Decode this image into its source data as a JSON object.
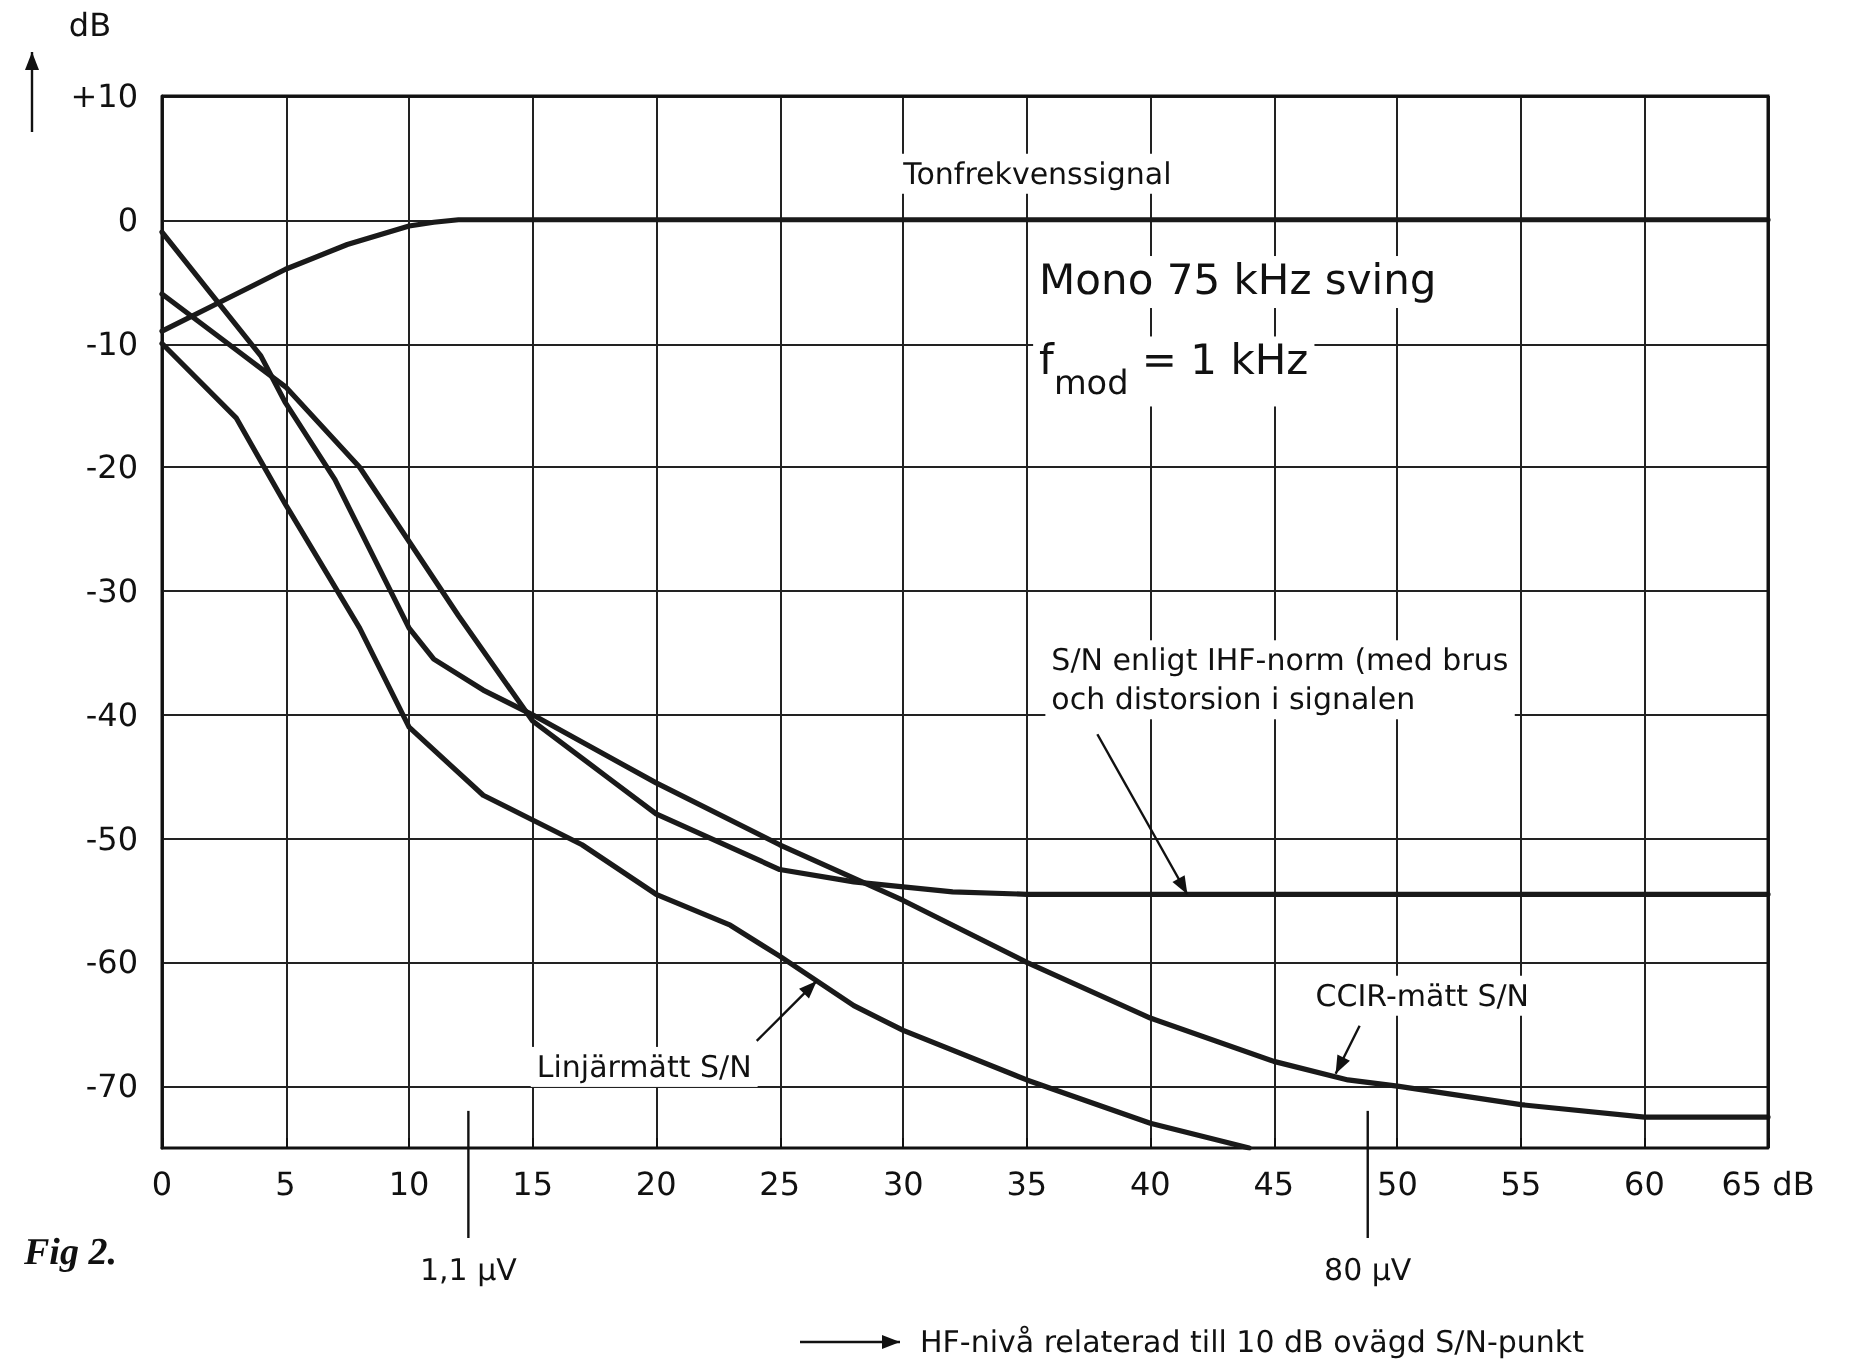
{
  "chart_data": {
    "type": "line",
    "xlabel": "HF-nivå relaterad till 10 dB ovägd S/N-punkt",
    "ylabel": "dB",
    "xlim": [
      0,
      65
    ],
    "xticks": [
      0,
      5,
      10,
      15,
      20,
      25,
      30,
      35,
      40,
      45,
      50,
      55,
      60,
      {
        "value": 65,
        "label": "65 dB"
      }
    ],
    "ylim": [
      -75,
      10
    ],
    "yticks": [
      -70,
      -60,
      -50,
      -40,
      -30,
      -20,
      -10,
      0,
      {
        "value": 10,
        "label": "+10"
      }
    ],
    "grid": true,
    "marker": "none",
    "line_style": "solid",
    "series": [
      {
        "color": "#1a1a1a",
        "x": [
          0,
          2.5,
          5,
          7.5,
          10,
          11,
          12,
          15,
          20,
          30,
          40,
          50,
          60,
          65
        ],
        "values": [
          -9,
          -6.5,
          -4,
          -2,
          -0.5,
          -0.2,
          0,
          0,
          0,
          0,
          0,
          0,
          0,
          0
        ]
      },
      {
        "color": "#1a1a1a",
        "x": [
          0,
          2,
          4,
          5,
          7,
          9,
          10,
          11,
          13,
          15,
          20,
          25,
          30,
          35,
          40,
          45,
          48,
          50,
          55,
          60,
          65
        ],
        "values": [
          -1,
          -6,
          -11,
          -14.8,
          -21,
          -29,
          -33,
          -35.5,
          -38,
          -40,
          -45.5,
          -50.5,
          -55,
          -60,
          -64.5,
          -68,
          -69.5,
          -70,
          -71.5,
          -72.5,
          -72.5
        ]
      },
      {
        "color": "#1a1a1a",
        "x": [
          0,
          3,
          5,
          8,
          10,
          12,
          15,
          18,
          20,
          25,
          28,
          32,
          35,
          45,
          65
        ],
        "values": [
          -6,
          -10.5,
          -13.5,
          -20,
          -26,
          -32,
          -40.5,
          -45,
          -48,
          -52.5,
          -53.5,
          -54.3,
          -54.5,
          -54.5,
          -54.5
        ]
      },
      {
        "color": "#1a1a1a",
        "x": [
          0,
          3,
          5,
          8,
          10,
          13,
          15,
          17,
          20,
          23,
          25,
          28,
          30,
          35,
          40,
          44
        ],
        "values": [
          -10,
          -16,
          -23,
          -33,
          -41,
          -46.5,
          -48.5,
          -50.5,
          -54.5,
          -57,
          -59.5,
          -63.5,
          -65.5,
          -69.5,
          -73,
          -75
        ]
      }
    ],
    "ref_lines": [
      {
        "axis": "x",
        "value": 12.4,
        "label": "1,1 µV"
      },
      {
        "axis": "x",
        "value": 48.8,
        "label": "80 µV"
      }
    ],
    "annotations": [
      {
        "text": "Tonfrekvenssignal",
        "x": 30,
        "y": 0
      },
      {
        "text": "S/N enligt IHF-norm (med brus\noch distorsion i signalen",
        "x": 41.5,
        "y": -54.5
      },
      {
        "text": "Linjärmätt S/N",
        "x": 26.5,
        "y": -61.5
      },
      {
        "text": "CCIR-mätt S/N",
        "x": 47.5,
        "y": -69
      },
      "Mono  75 kHz  sving",
      "f$_{mod}$ = 1 kHz",
      "Fig 2."
    ]
  }
}
